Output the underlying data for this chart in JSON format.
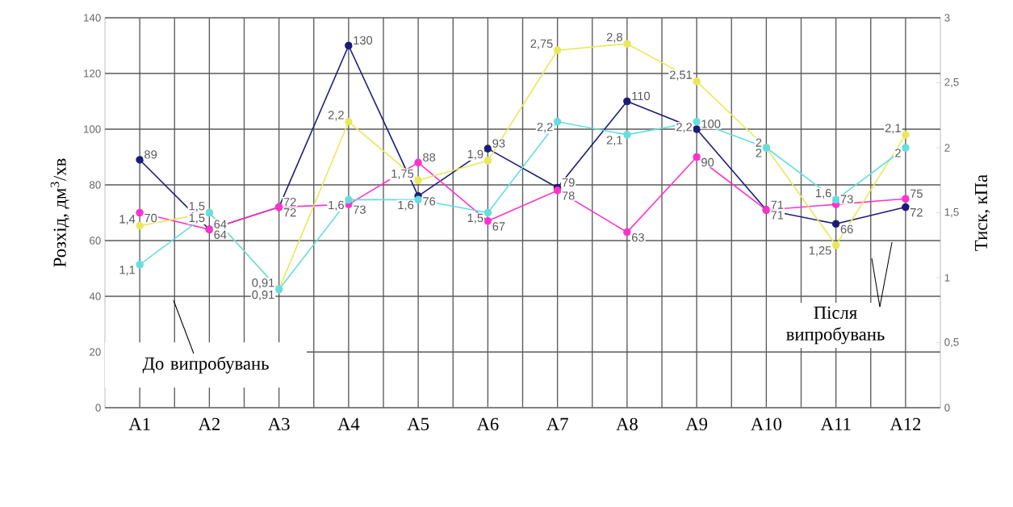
{
  "chart_data": {
    "type": "line",
    "categories": [
      "A1",
      "A2",
      "A3",
      "A4",
      "A5",
      "A6",
      "A7",
      "A8",
      "A9",
      "A10",
      "A11",
      "A12"
    ],
    "ylabel": "Розхід, дм$^{3}$/хв",
    "y2label": "Тиск, кПа",
    "ylim": [
      0,
      140
    ],
    "yticks": [
      0,
      20,
      40,
      60,
      80,
      100,
      120,
      140
    ],
    "y2lim": [
      0,
      3
    ],
    "y2ticks": [
      0,
      {
        "value": 0.5,
        "label": "0,5"
      },
      1,
      {
        "value": 1.5,
        "label": "1,5"
      },
      2,
      {
        "value": 2.5,
        "label": "2,5"
      },
      3
    ],
    "grid": true,
    "marker": "circle",
    "line_style": "solid",
    "series": [
      {
        "color": "#1c1c78",
        "values": [
          89,
          64,
          72,
          130,
          76,
          93,
          79,
          110,
          100,
          71,
          66,
          72
        ],
        "value_labels": [
          "89",
          "64",
          "72",
          "130",
          "76",
          "93",
          "79",
          "110",
          "100",
          "71",
          "66",
          "72"
        ]
      },
      {
        "color": "#ff33cc",
        "values": [
          70,
          64,
          72,
          73,
          88,
          67,
          78,
          63,
          90,
          71,
          73,
          75
        ],
        "value_labels": [
          "70",
          "64",
          "72",
          "73",
          "88",
          "67",
          "78",
          "63",
          "90",
          "71",
          "73",
          "75"
        ]
      },
      {
        "color": "#e8e85a",
        "axis": "y2",
        "values": [
          1.4,
          1.5,
          0.91,
          2.2,
          1.75,
          1.9,
          2.75,
          2.8,
          2.51,
          2,
          1.25,
          2.1
        ],
        "value_labels": [
          "1,4",
          "1,5",
          "0,91",
          "2,2",
          "1,75",
          "1,9",
          "2,75",
          "2,8",
          "2,51",
          "2",
          "1,25",
          "2,1"
        ]
      },
      {
        "color": "#66dede",
        "axis": "y2",
        "values": [
          1.1,
          1.5,
          0.91,
          1.6,
          1.6,
          1.5,
          2.2,
          2.1,
          2.2,
          2,
          1.6,
          2
        ],
        "value_labels": [
          "1,1",
          "1,5",
          "0,91",
          "1,6",
          "1,6",
          "1,5",
          "2,2",
          "2,1",
          "2,2",
          "2",
          "1,6",
          "2"
        ]
      }
    ],
    "annotations": [
      "До випробувань",
      "Після випробувань"
    ]
  }
}
